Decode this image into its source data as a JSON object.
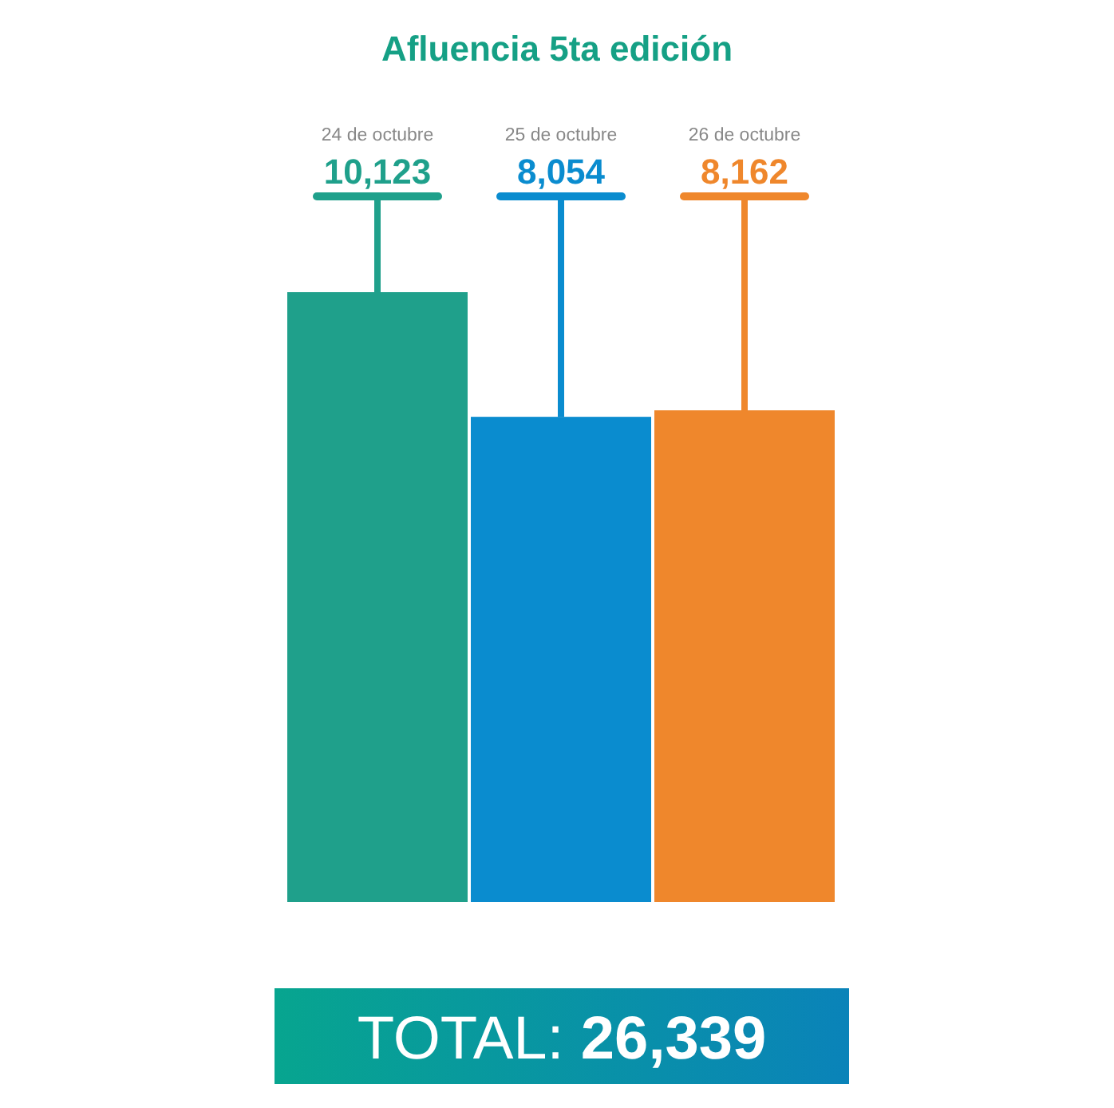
{
  "chart_data": {
    "type": "bar",
    "title": "Afluencia 5ta edición",
    "categories": [
      "24 de octubre",
      "25 de octubre",
      "26 de octubre"
    ],
    "values": [
      10123,
      8054,
      8162
    ],
    "colors": [
      "#1fa08b",
      "#0a8ccf",
      "#ef872c"
    ],
    "value_labels": [
      "10,123",
      "8,054",
      "8,162"
    ],
    "annotations": [
      "TOTAL: 26,339"
    ]
  }
}
